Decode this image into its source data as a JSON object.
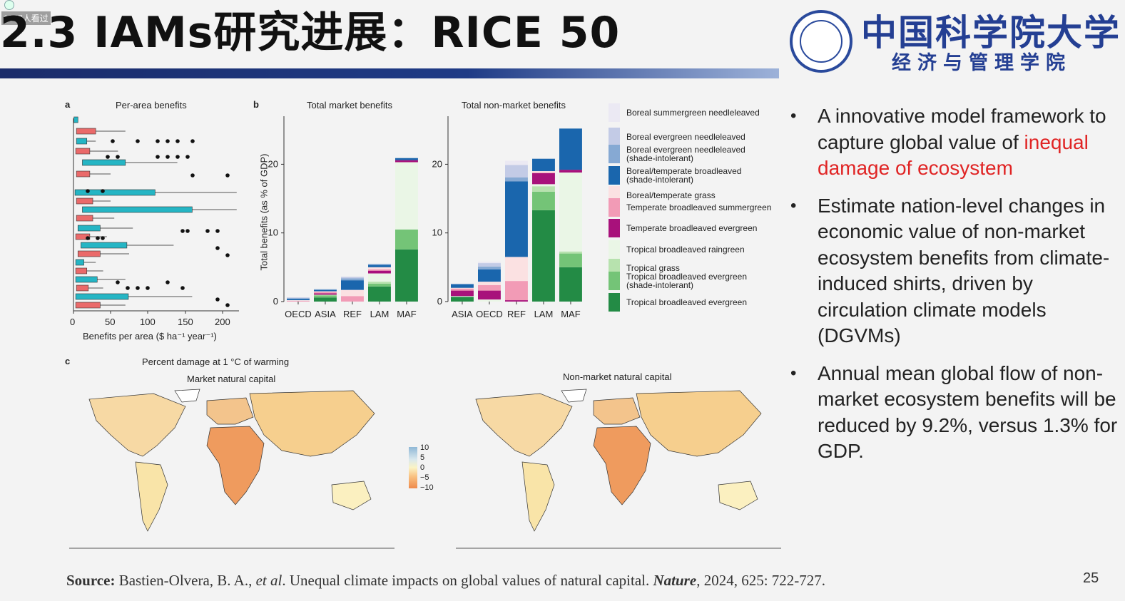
{
  "overlay": {
    "viewers": "1057人看过"
  },
  "slide": {
    "title": "2.3 IAMs研究进展：RICE 50",
    "page_number": "25"
  },
  "logo": {
    "cn_name": "中国科学院大学",
    "cn_school": "经济与管理学院"
  },
  "bullets": [
    {
      "text_before": "A innovative model framework to capture global value of ",
      "highlight": "inequal damage of ecosystem",
      "text_after": ""
    },
    {
      "text_before": "Estimate nation-level changes in economic value of non-market ecosystem benefits from climate-induced shirts, driven by circulation climate models (DGVMs)",
      "highlight": "",
      "text_after": ""
    },
    {
      "text_before": "Annual mean global flow of non-market ecosystem benefits will be reduced by 9.2%, versus 1.3% for GDP.",
      "highlight": "",
      "text_after": ""
    }
  ],
  "source": {
    "label": "Source:",
    "authors": " Bastien-Olvera, B. A., ",
    "etal": "et al",
    "title": ". Unequal climate impacts on global values of natural capital. ",
    "journal": "Nature",
    "details": ", 2024, 625: 722-727."
  },
  "figure": {
    "panel_a": {
      "letter": "a",
      "title": "Per-area benefits",
      "xlabel": "Benefits per area ($ ha⁻¹ year⁻¹)",
      "xticks": [
        "0",
        "50",
        "100",
        "150",
        "200"
      ]
    },
    "panel_b": {
      "letter": "b",
      "title_market": "Total market benefits",
      "title_nonmarket": "Total non-market benefits",
      "ylabel": "Total benefits (as % of GDP)"
    },
    "panel_c": {
      "letter": "c",
      "title": "Percent damage at 1 °C of warming",
      "map1_title": "Market natural capital",
      "map2_title": "Non-market natural capital",
      "scale_ticks": [
        "10",
        "5",
        "0",
        "−5",
        "−10"
      ]
    },
    "legend": [
      {
        "label": "Boreal summergreen needleleaved",
        "color": "#ebe9f3"
      },
      {
        "label": "Boreal evergreen needleleaved",
        "color": "#c3cbe6"
      },
      {
        "label": "Boreal evergreen needleleaved\n(shade-intolerant)",
        "color": "#86a9d3"
      },
      {
        "label": "Boreal/temperate broadleaved\n(shade-intolerant)",
        "color": "#1a66ad"
      },
      {
        "label": "Boreal/temperate grass",
        "color": "#fbe1e2"
      },
      {
        "label": "Temperate broadleaved summergreen",
        "color": "#f29bb6"
      },
      {
        "label": "Temperate broadleaved evergreen",
        "color": "#a8117b"
      },
      {
        "label": "Tropical broadleaved raingreen",
        "color": "#eaf6e6"
      },
      {
        "label": "Tropical grass",
        "color": "#b7e2ae"
      },
      {
        "label": "Tropical broadleaved evergreen\n(shade-intolerant)",
        "color": "#74c477"
      },
      {
        "label": "Tropical broadleaved evergreen",
        "color": "#238b45"
      }
    ]
  },
  "chart_data": [
    {
      "type": "bar",
      "stacked": true,
      "title": "Total market benefits",
      "ylabel": "Total benefits (as % of GDP)",
      "categories": [
        "OECD",
        "ASIA",
        "REF",
        "LAM",
        "MAF"
      ],
      "ylim": [
        0,
        27
      ],
      "yticks": [
        0,
        10,
        20
      ],
      "series": [
        {
          "name": "Tropical broadleaved evergreen",
          "color": "#238b45",
          "values": [
            0,
            0.6,
            0,
            2.2,
            7.6
          ]
        },
        {
          "name": "Tropical broadleaved evergreen\n(shade-intolerant)",
          "color": "#74c477",
          "values": [
            0,
            0.3,
            0,
            0.4,
            2.9
          ]
        },
        {
          "name": "Tropical grass",
          "color": "#b7e2ae",
          "values": [
            0,
            0.1,
            0,
            0.3,
            0
          ]
        },
        {
          "name": "Tropical broadleaved raingreen",
          "color": "#eaf6e6",
          "values": [
            0,
            0,
            0,
            1.2,
            9.8
          ]
        },
        {
          "name": "Temperate broadleaved evergreen",
          "color": "#a8117b",
          "values": [
            0,
            0.2,
            0,
            0.4,
            0.3
          ]
        },
        {
          "name": "Temperate broadleaved summergreen",
          "color": "#f29bb6",
          "values": [
            0.1,
            0.2,
            0.8,
            0.2,
            0
          ]
        },
        {
          "name": "Boreal/temperate grass",
          "color": "#fbe1e2",
          "values": [
            0.1,
            0.1,
            0.9,
            0.3,
            0
          ]
        },
        {
          "name": "Boreal/temperate broadleaved\n(shade-intolerant)",
          "color": "#1a66ad",
          "values": [
            0.2,
            0.2,
            1.4,
            0.3,
            0.3
          ]
        },
        {
          "name": "Boreal evergreen needleleaved\n(shade-intolerant)",
          "color": "#86a9d3",
          "values": [
            0.1,
            0.1,
            0.3,
            0.2,
            0
          ]
        },
        {
          "name": "Boreal evergreen needleleaved",
          "color": "#c3cbe6",
          "values": [
            0.1,
            0,
            0.2,
            0,
            0
          ]
        }
      ]
    },
    {
      "type": "bar",
      "stacked": true,
      "title": "Total non-market benefits",
      "categories": [
        "ASIA",
        "OECD",
        "REF",
        "LAM",
        "MAF"
      ],
      "ylim": [
        0,
        27
      ],
      "yticks": [
        0,
        10,
        20
      ],
      "series": [
        {
          "name": "Tropical broadleaved evergreen",
          "color": "#238b45",
          "values": [
            0.7,
            0,
            0,
            13.3,
            5
          ]
        },
        {
          "name": "Tropical broadleaved evergreen\n(shade-intolerant)",
          "color": "#74c477",
          "values": [
            0,
            0,
            0,
            2.7,
            2
          ]
        },
        {
          "name": "Tropical grass",
          "color": "#b7e2ae",
          "values": [
            0,
            0,
            0,
            0.8,
            0.3
          ]
        },
        {
          "name": "Tropical broadleaved raingreen",
          "color": "#eaf6e6",
          "values": [
            0.1,
            0.3,
            0,
            0.3,
            11.5
          ]
        },
        {
          "name": "Temperate broadleaved evergreen",
          "color": "#a8117b",
          "values": [
            0.8,
            1.3,
            0.2,
            1.6,
            0.4
          ]
        },
        {
          "name": "Temperate broadleaved summergreen",
          "color": "#f29bb6",
          "values": [
            0.3,
            0.8,
            2.8,
            0.1,
            0
          ]
        },
        {
          "name": "Boreal/temperate grass",
          "color": "#fbe1e2",
          "values": [
            0.1,
            0.5,
            3.5,
            0.2,
            0
          ]
        },
        {
          "name": "Boreal/temperate broadleaved\n(shade-intolerant)",
          "color": "#1a66ad",
          "values": [
            0.5,
            1.8,
            11,
            1.8,
            6
          ]
        },
        {
          "name": "Boreal evergreen needleleaved\n(shade-intolerant)",
          "color": "#86a9d3",
          "values": [
            0.1,
            0.4,
            0.6,
            0,
            0
          ]
        },
        {
          "name": "Boreal evergreen needleleaved",
          "color": "#c3cbe6",
          "values": [
            0,
            0.5,
            1.8,
            0,
            0
          ]
        },
        {
          "name": "Boreal summergreen needleleaved",
          "color": "#ebe9f3",
          "values": [
            0,
            0.2,
            0.6,
            0,
            0
          ]
        }
      ]
    }
  ]
}
